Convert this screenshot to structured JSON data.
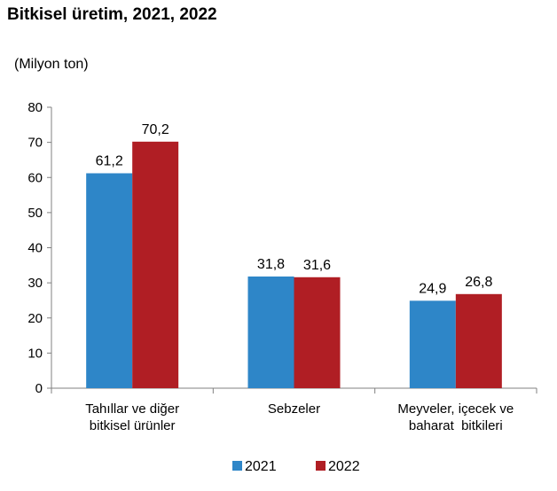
{
  "chart_data": {
    "type": "bar",
    "title": "Bitkisel üretim, 2021, 2022",
    "ylabel": "(Milyon ton)",
    "xlabel": "",
    "ylim": [
      0,
      80
    ],
    "yticks": [
      "0",
      "10",
      "20",
      "30",
      "40",
      "50",
      "60",
      "70",
      "80"
    ],
    "categories": [
      [
        "Tahıllar ve diğer",
        "bitkisel ürünler"
      ],
      [
        "Sebzeler"
      ],
      [
        "Meyveler, içecek ve",
        "baharat  bitkileri"
      ]
    ],
    "series": [
      {
        "name": "2021",
        "color": "#2e86c8",
        "values": [
          61.2,
          31.8,
          24.9
        ],
        "labels": [
          "61,2",
          "31,8",
          "24,9"
        ]
      },
      {
        "name": "2022",
        "color": "#b01e24",
        "values": [
          70.2,
          31.6,
          26.8
        ],
        "labels": [
          "70,2",
          "31,6",
          "26,8"
        ]
      }
    ],
    "grid": false,
    "legend": "bottom"
  }
}
